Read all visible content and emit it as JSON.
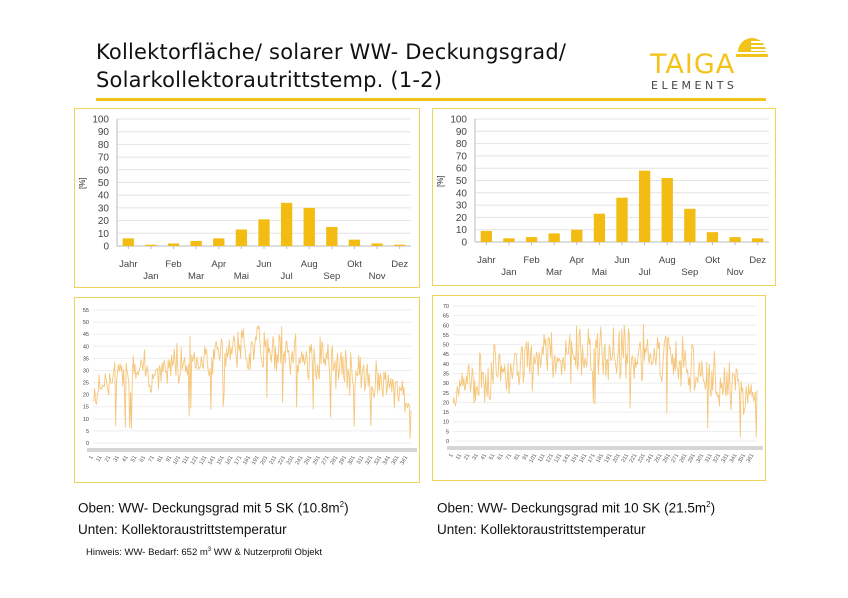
{
  "header": {
    "title_line1": "Kollektorfläche/ solarer WW- Deckungsgrad/",
    "title_line2": "Solarkollektorautrittstemp. (1-2)",
    "logo_main": "TAIGA",
    "logo_sub": "ELEMENTS",
    "accent_color": "#f2c318"
  },
  "captions": {
    "left_line1_pre": "Oben: WW- Deckungsgrad mit 5 SK (10.8m",
    "left_line1_sup": "2",
    "left_line1_post": ")",
    "left_line2": "Unten: Kollektoraustrittstemperatur",
    "right_line1_pre": "Oben: WW- Deckungsgrad mit 10 SK (21.5m",
    "right_line1_sup": "2",
    "right_line1_post": ")",
    "right_line2": "Unten: Kollektoraustrittstemperatur"
  },
  "note": {
    "pre": "Hinweis: WW- Bedarf: 652 m",
    "sup": "3",
    "post": " WW & Nutzerprofil Objekt"
  },
  "chart_data": [
    {
      "type": "bar",
      "ylabel": "[%]",
      "ylim": [
        0,
        100
      ],
      "yticks": [
        0,
        10,
        20,
        30,
        40,
        50,
        60,
        70,
        80,
        90,
        100
      ],
      "categories": [
        "Jahr",
        "Jan",
        "Feb",
        "Mar",
        "Apr",
        "Mai",
        "Jun",
        "Jul",
        "Aug",
        "Sep",
        "Okt",
        "Nov",
        "Dez"
      ],
      "values": [
        6,
        1,
        2,
        4,
        6,
        13,
        21,
        34,
        30,
        15,
        5,
        2,
        1
      ],
      "color": "#f2bc12"
    },
    {
      "type": "bar",
      "ylabel": "[%]",
      "ylim": [
        0,
        100
      ],
      "yticks": [
        0,
        10,
        20,
        30,
        40,
        50,
        60,
        70,
        80,
        90,
        100
      ],
      "categories": [
        "Jahr",
        "Jan",
        "Feb",
        "Mar",
        "Apr",
        "Mai",
        "Jun",
        "Jul",
        "Aug",
        "Sep",
        "Okt",
        "Nov",
        "Dez"
      ],
      "values": [
        9,
        3,
        4,
        7,
        10,
        23,
        36,
        58,
        52,
        27,
        8,
        4,
        3
      ],
      "color": "#f2bc12"
    },
    {
      "type": "line",
      "ylim": [
        0,
        55
      ],
      "yticks": [
        0,
        5,
        10,
        15,
        20,
        25,
        30,
        35,
        40,
        45,
        50,
        55
      ],
      "xticks": [
        "1",
        "11",
        "21",
        "31",
        "41",
        "51",
        "61",
        "71",
        "81",
        "91",
        "101",
        "111",
        "121",
        "131",
        "141",
        "151",
        "161",
        "171",
        "181",
        "191",
        "201",
        "211",
        "221",
        "231",
        "241",
        "251",
        "261",
        "271",
        "281",
        "291",
        "301",
        "311",
        "321",
        "331",
        "341",
        "351",
        "361"
      ],
      "color": "#f5c67a",
      "envelope": {
        "day": [
          1,
          12,
          30,
          60,
          100,
          140,
          172,
          200,
          230,
          260,
          290,
          320,
          345,
          365
        ],
        "low": [
          12,
          18,
          17,
          20,
          23,
          27,
          29,
          28,
          26,
          24,
          20,
          17,
          13,
          11
        ],
        "high": [
          22,
          33,
          35,
          39,
          43,
          47,
          50,
          50,
          48,
          45,
          40,
          36,
          32,
          26
        ]
      },
      "seed": 7
    },
    {
      "type": "line",
      "ylim": [
        0,
        70
      ],
      "yticks": [
        0,
        5,
        10,
        15,
        20,
        25,
        30,
        35,
        40,
        45,
        50,
        55,
        60,
        65,
        70
      ],
      "xticks": [
        "1",
        "11",
        "21",
        "31",
        "41",
        "51",
        "61",
        "71",
        "81",
        "91",
        "101",
        "111",
        "121",
        "131",
        "141",
        "151",
        "161",
        "171",
        "181",
        "191",
        "201",
        "211",
        "221",
        "231",
        "241",
        "251",
        "261",
        "271",
        "281",
        "291",
        "301",
        "311",
        "321",
        "331",
        "341",
        "351",
        "361"
      ],
      "color": "#f5c67a",
      "envelope": {
        "day": [
          1,
          12,
          30,
          60,
          100,
          140,
          172,
          200,
          230,
          260,
          290,
          320,
          345,
          365
        ],
        "low": [
          12,
          18,
          18,
          22,
          26,
          29,
          32,
          31,
          29,
          27,
          22,
          18,
          13,
          11
        ],
        "high": [
          25,
          42,
          47,
          52,
          55,
          59,
          64,
          64,
          62,
          58,
          52,
          47,
          42,
          30
        ]
      },
      "seed": 19
    }
  ]
}
